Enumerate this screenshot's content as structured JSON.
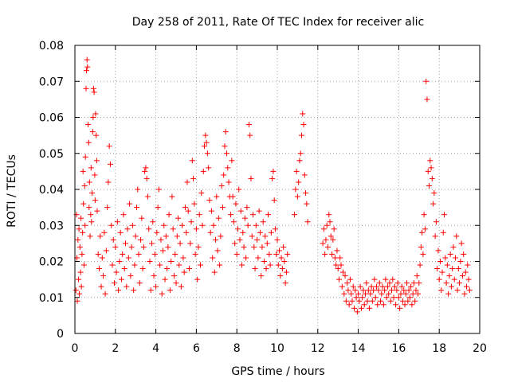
{
  "chart_data": {
    "type": "scatter",
    "title": "Day 258 of 2011, Rate Of TEC Index for receiver alic",
    "xlabel": "GPS time / hours",
    "ylabel": "ROTI / TECUs",
    "xlim": [
      0,
      20
    ],
    "ylim": [
      0,
      0.08
    ],
    "xticks": [
      "0",
      "2",
      "4",
      "6",
      "8",
      "10",
      "12",
      "14",
      "16",
      "18",
      "20"
    ],
    "yticks": [
      "0",
      "0.01",
      "0.02",
      "0.03",
      "0.04",
      "0.05",
      "0.06",
      "0.07",
      "0.08"
    ],
    "grid": true,
    "marker": "plus",
    "color": "#ff0000",
    "points": [
      [
        0.05,
        0.012
      ],
      [
        0.08,
        0.033
      ],
      [
        0.1,
        0.021
      ],
      [
        0.12,
        0.009
      ],
      [
        0.15,
        0.026
      ],
      [
        0.18,
        0.015
      ],
      [
        0.2,
        0.029
      ],
      [
        0.22,
        0.011
      ],
      [
        0.25,
        0.024
      ],
      [
        0.28,
        0.017
      ],
      [
        0.3,
        0.032
      ],
      [
        0.32,
        0.013
      ],
      [
        0.35,
        0.022
      ],
      [
        0.38,
        0.028
      ],
      [
        0.4,
        0.045
      ],
      [
        0.42,
        0.036
      ],
      [
        0.45,
        0.019
      ],
      [
        0.48,
        0.041
      ],
      [
        0.5,
        0.03
      ],
      [
        0.52,
        0.049
      ],
      [
        0.55,
        0.068
      ],
      [
        0.57,
        0.073
      ],
      [
        0.6,
        0.076
      ],
      [
        0.62,
        0.074
      ],
      [
        0.65,
        0.058
      ],
      [
        0.68,
        0.053
      ],
      [
        0.7,
        0.035
      ],
      [
        0.72,
        0.042
      ],
      [
        0.75,
        0.027
      ],
      [
        0.78,
        0.033
      ],
      [
        0.8,
        0.046
      ],
      [
        0.82,
        0.031
      ],
      [
        0.85,
        0.039
      ],
      [
        0.88,
        0.056
      ],
      [
        0.9,
        0.06
      ],
      [
        0.92,
        0.068
      ],
      [
        0.95,
        0.067
      ],
      [
        0.98,
        0.044
      ],
      [
        1.0,
        0.037
      ],
      [
        1.02,
        0.061
      ],
      [
        1.05,
        0.055
      ],
      [
        1.08,
        0.048
      ],
      [
        1.1,
        0.034
      ],
      [
        1.15,
        0.022
      ],
      [
        1.2,
        0.018
      ],
      [
        1.25,
        0.027
      ],
      [
        1.3,
        0.013
      ],
      [
        1.35,
        0.021
      ],
      [
        1.4,
        0.016
      ],
      [
        1.45,
        0.028
      ],
      [
        1.5,
        0.011
      ],
      [
        1.55,
        0.023
      ],
      [
        1.6,
        0.035
      ],
      [
        1.65,
        0.042
      ],
      [
        1.7,
        0.052
      ],
      [
        1.75,
        0.047
      ],
      [
        1.8,
        0.03
      ],
      [
        1.85,
        0.019
      ],
      [
        1.9,
        0.026
      ],
      [
        1.95,
        0.014
      ],
      [
        2.0,
        0.024
      ],
      [
        2.05,
        0.017
      ],
      [
        2.1,
        0.031
      ],
      [
        2.15,
        0.012
      ],
      [
        2.2,
        0.02
      ],
      [
        2.25,
        0.028
      ],
      [
        2.3,
        0.015
      ],
      [
        2.35,
        0.022
      ],
      [
        2.4,
        0.033
      ],
      [
        2.45,
        0.018
      ],
      [
        2.5,
        0.025
      ],
      [
        2.55,
        0.013
      ],
      [
        2.6,
        0.029
      ],
      [
        2.65,
        0.021
      ],
      [
        2.7,
        0.036
      ],
      [
        2.75,
        0.016
      ],
      [
        2.8,
        0.024
      ],
      [
        2.85,
        0.03
      ],
      [
        2.9,
        0.012
      ],
      [
        2.95,
        0.019
      ],
      [
        3.0,
        0.027
      ],
      [
        3.05,
        0.035
      ],
      [
        3.1,
        0.04
      ],
      [
        3.15,
        0.022
      ],
      [
        3.2,
        0.014
      ],
      [
        3.25,
        0.026
      ],
      [
        3.3,
        0.032
      ],
      [
        3.35,
        0.018
      ],
      [
        3.4,
        0.024
      ],
      [
        3.45,
        0.045
      ],
      [
        3.5,
        0.046
      ],
      [
        3.55,
        0.043
      ],
      [
        3.6,
        0.038
      ],
      [
        3.65,
        0.029
      ],
      [
        3.7,
        0.02
      ],
      [
        3.75,
        0.012
      ],
      [
        3.8,
        0.025
      ],
      [
        3.85,
        0.031
      ],
      [
        3.9,
        0.016
      ],
      [
        3.95,
        0.022
      ],
      [
        4.0,
        0.013
      ],
      [
        4.05,
        0.028
      ],
      [
        4.1,
        0.035
      ],
      [
        4.15,
        0.04
      ],
      [
        4.2,
        0.019
      ],
      [
        4.25,
        0.026
      ],
      [
        4.3,
        0.011
      ],
      [
        4.35,
        0.023
      ],
      [
        4.4,
        0.03
      ],
      [
        4.45,
        0.015
      ],
      [
        4.5,
        0.027
      ],
      [
        4.55,
        0.018
      ],
      [
        4.6,
        0.024
      ],
      [
        4.65,
        0.033
      ],
      [
        4.7,
        0.012
      ],
      [
        4.75,
        0.02
      ],
      [
        4.8,
        0.038
      ],
      [
        4.85,
        0.029
      ],
      [
        4.9,
        0.016
      ],
      [
        4.95,
        0.022
      ],
      [
        5.0,
        0.014
      ],
      [
        5.05,
        0.027
      ],
      [
        5.1,
        0.032
      ],
      [
        5.15,
        0.019
      ],
      [
        5.2,
        0.025
      ],
      [
        5.25,
        0.013
      ],
      [
        5.3,
        0.03
      ],
      [
        5.35,
        0.021
      ],
      [
        5.4,
        0.017
      ],
      [
        5.45,
        0.035
      ],
      [
        5.5,
        0.028
      ],
      [
        5.55,
        0.042
      ],
      [
        5.6,
        0.034
      ],
      [
        5.65,
        0.018
      ],
      [
        5.7,
        0.025
      ],
      [
        5.75,
        0.031
      ],
      [
        5.8,
        0.048
      ],
      [
        5.85,
        0.043
      ],
      [
        5.9,
        0.036
      ],
      [
        5.95,
        0.022
      ],
      [
        6.0,
        0.029
      ],
      [
        6.05,
        0.015
      ],
      [
        6.1,
        0.024
      ],
      [
        6.15,
        0.033
      ],
      [
        6.2,
        0.019
      ],
      [
        6.25,
        0.039
      ],
      [
        6.3,
        0.03
      ],
      [
        6.35,
        0.045
      ],
      [
        6.4,
        0.052
      ],
      [
        6.45,
        0.055
      ],
      [
        6.5,
        0.053
      ],
      [
        6.55,
        0.05
      ],
      [
        6.6,
        0.046
      ],
      [
        6.65,
        0.037
      ],
      [
        6.7,
        0.028
      ],
      [
        6.75,
        0.034
      ],
      [
        6.8,
        0.021
      ],
      [
        6.85,
        0.03
      ],
      [
        6.9,
        0.017
      ],
      [
        6.95,
        0.026
      ],
      [
        7.0,
        0.038
      ],
      [
        7.05,
        0.023
      ],
      [
        7.1,
        0.032
      ],
      [
        7.15,
        0.019
      ],
      [
        7.2,
        0.027
      ],
      [
        7.25,
        0.041
      ],
      [
        7.3,
        0.035
      ],
      [
        7.35,
        0.044
      ],
      [
        7.4,
        0.052
      ],
      [
        7.45,
        0.056
      ],
      [
        7.5,
        0.05
      ],
      [
        7.55,
        0.046
      ],
      [
        7.6,
        0.042
      ],
      [
        7.65,
        0.038
      ],
      [
        7.7,
        0.033
      ],
      [
        7.75,
        0.048
      ],
      [
        7.8,
        0.038
      ],
      [
        7.85,
        0.031
      ],
      [
        7.9,
        0.025
      ],
      [
        7.95,
        0.036
      ],
      [
        8.0,
        0.022
      ],
      [
        8.05,
        0.029
      ],
      [
        8.1,
        0.04
      ],
      [
        8.15,
        0.026
      ],
      [
        8.2,
        0.034
      ],
      [
        8.25,
        0.019
      ],
      [
        8.3,
        0.028
      ],
      [
        8.35,
        0.024
      ],
      [
        8.4,
        0.032
      ],
      [
        8.45,
        0.021
      ],
      [
        8.5,
        0.035
      ],
      [
        8.55,
        0.03
      ],
      [
        8.6,
        0.058
      ],
      [
        8.65,
        0.055
      ],
      [
        8.7,
        0.043
      ],
      [
        8.75,
        0.027
      ],
      [
        8.8,
        0.033
      ],
      [
        8.85,
        0.024
      ],
      [
        8.9,
        0.018
      ],
      [
        8.95,
        0.03
      ],
      [
        9.0,
        0.026
      ],
      [
        9.05,
        0.021
      ],
      [
        9.1,
        0.034
      ],
      [
        9.15,
        0.028
      ],
      [
        9.2,
        0.016
      ],
      [
        9.25,
        0.024
      ],
      [
        9.3,
        0.031
      ],
      [
        9.35,
        0.02
      ],
      [
        9.4,
        0.027
      ],
      [
        9.45,
        0.018
      ],
      [
        9.5,
        0.025
      ],
      [
        9.55,
        0.033
      ],
      [
        9.6,
        0.022
      ],
      [
        9.65,
        0.019
      ],
      [
        9.7,
        0.028
      ],
      [
        9.75,
        0.043
      ],
      [
        9.8,
        0.045
      ],
      [
        9.85,
        0.037
      ],
      [
        9.9,
        0.029
      ],
      [
        9.95,
        0.022
      ],
      [
        10.0,
        0.026
      ],
      [
        10.05,
        0.019
      ],
      [
        10.1,
        0.023
      ],
      [
        10.15,
        0.016
      ],
      [
        10.2,
        0.021
      ],
      [
        10.25,
        0.018
      ],
      [
        10.3,
        0.024
      ],
      [
        10.35,
        0.02
      ],
      [
        10.4,
        0.014
      ],
      [
        10.45,
        0.017
      ],
      [
        10.5,
        0.022
      ],
      [
        10.85,
        0.033
      ],
      [
        10.9,
        0.04
      ],
      [
        10.95,
        0.045
      ],
      [
        11.0,
        0.038
      ],
      [
        11.05,
        0.042
      ],
      [
        11.1,
        0.048
      ],
      [
        11.15,
        0.05
      ],
      [
        11.2,
        0.055
      ],
      [
        11.25,
        0.061
      ],
      [
        11.3,
        0.058
      ],
      [
        11.35,
        0.044
      ],
      [
        11.4,
        0.039
      ],
      [
        11.45,
        0.036
      ],
      [
        11.5,
        0.031
      ],
      [
        12.25,
        0.025
      ],
      [
        12.3,
        0.029
      ],
      [
        12.35,
        0.022
      ],
      [
        12.4,
        0.026
      ],
      [
        12.45,
        0.03
      ],
      [
        12.5,
        0.024
      ],
      [
        12.55,
        0.033
      ],
      [
        12.6,
        0.031
      ],
      [
        12.65,
        0.027
      ],
      [
        12.7,
        0.022
      ],
      [
        12.75,
        0.026
      ],
      [
        12.8,
        0.029
      ],
      [
        12.85,
        0.021
      ],
      [
        12.9,
        0.019
      ],
      [
        12.95,
        0.023
      ],
      [
        13.0,
        0.018
      ],
      [
        13.05,
        0.015
      ],
      [
        13.1,
        0.021
      ],
      [
        13.15,
        0.019
      ],
      [
        13.2,
        0.013
      ],
      [
        13.25,
        0.017
      ],
      [
        13.3,
        0.011
      ],
      [
        13.35,
        0.016
      ],
      [
        13.4,
        0.009
      ],
      [
        13.45,
        0.014
      ],
      [
        13.5,
        0.012
      ],
      [
        13.55,
        0.008
      ],
      [
        13.6,
        0.015
      ],
      [
        13.65,
        0.011
      ],
      [
        13.7,
        0.009
      ],
      [
        13.75,
        0.013
      ],
      [
        13.8,
        0.007
      ],
      [
        13.85,
        0.012
      ],
      [
        13.9,
        0.01
      ],
      [
        13.95,
        0.006
      ],
      [
        14.0,
        0.011
      ],
      [
        14.05,
        0.009
      ],
      [
        14.1,
        0.013
      ],
      [
        14.15,
        0.007
      ],
      [
        14.2,
        0.01
      ],
      [
        14.25,
        0.012
      ],
      [
        14.3,
        0.008
      ],
      [
        14.35,
        0.011
      ],
      [
        14.4,
        0.014
      ],
      [
        14.45,
        0.009
      ],
      [
        14.5,
        0.012
      ],
      [
        14.55,
        0.007
      ],
      [
        14.6,
        0.011
      ],
      [
        14.65,
        0.013
      ],
      [
        14.7,
        0.009
      ],
      [
        14.75,
        0.012
      ],
      [
        14.8,
        0.015
      ],
      [
        14.85,
        0.01
      ],
      [
        14.9,
        0.013
      ],
      [
        14.95,
        0.008
      ],
      [
        15.0,
        0.012
      ],
      [
        15.05,
        0.014
      ],
      [
        15.1,
        0.009
      ],
      [
        15.15,
        0.011
      ],
      [
        15.2,
        0.013
      ],
      [
        15.25,
        0.008
      ],
      [
        15.3,
        0.012
      ],
      [
        15.35,
        0.015
      ],
      [
        15.4,
        0.01
      ],
      [
        15.45,
        0.013
      ],
      [
        15.5,
        0.011
      ],
      [
        15.55,
        0.014
      ],
      [
        15.6,
        0.009
      ],
      [
        15.65,
        0.012
      ],
      [
        15.7,
        0.015
      ],
      [
        15.75,
        0.01
      ],
      [
        15.8,
        0.013
      ],
      [
        15.85,
        0.008
      ],
      [
        15.9,
        0.012
      ],
      [
        15.95,
        0.014
      ],
      [
        16.0,
        0.01
      ],
      [
        16.05,
        0.007
      ],
      [
        16.1,
        0.011
      ],
      [
        16.15,
        0.013
      ],
      [
        16.2,
        0.009
      ],
      [
        16.25,
        0.012
      ],
      [
        16.3,
        0.008
      ],
      [
        16.35,
        0.011
      ],
      [
        16.4,
        0.014
      ],
      [
        16.45,
        0.009
      ],
      [
        16.5,
        0.012
      ],
      [
        16.55,
        0.01
      ],
      [
        16.6,
        0.013
      ],
      [
        16.65,
        0.008
      ],
      [
        16.7,
        0.011
      ],
      [
        16.75,
        0.014
      ],
      [
        16.8,
        0.009
      ],
      [
        16.85,
        0.012
      ],
      [
        16.9,
        0.016
      ],
      [
        16.95,
        0.011
      ],
      [
        17.0,
        0.014
      ],
      [
        17.05,
        0.019
      ],
      [
        17.1,
        0.024
      ],
      [
        17.15,
        0.028
      ],
      [
        17.2,
        0.022
      ],
      [
        17.25,
        0.033
      ],
      [
        17.3,
        0.029
      ],
      [
        17.35,
        0.07
      ],
      [
        17.4,
        0.065
      ],
      [
        17.45,
        0.045
      ],
      [
        17.5,
        0.041
      ],
      [
        17.55,
        0.048
      ],
      [
        17.6,
        0.046
      ],
      [
        17.65,
        0.043
      ],
      [
        17.7,
        0.036
      ],
      [
        17.75,
        0.039
      ],
      [
        17.8,
        0.027
      ],
      [
        17.85,
        0.031
      ],
      [
        17.9,
        0.018
      ],
      [
        17.95,
        0.023
      ],
      [
        18.0,
        0.015
      ],
      [
        18.05,
        0.02
      ],
      [
        18.1,
        0.012
      ],
      [
        18.15,
        0.017
      ],
      [
        18.2,
        0.028
      ],
      [
        18.25,
        0.033
      ],
      [
        18.3,
        0.021
      ],
      [
        18.35,
        0.014
      ],
      [
        18.4,
        0.019
      ],
      [
        18.45,
        0.011
      ],
      [
        18.5,
        0.016
      ],
      [
        18.55,
        0.022
      ],
      [
        18.6,
        0.013
      ],
      [
        18.65,
        0.018
      ],
      [
        18.7,
        0.024
      ],
      [
        18.75,
        0.015
      ],
      [
        18.8,
        0.021
      ],
      [
        18.85,
        0.027
      ],
      [
        18.9,
        0.012
      ],
      [
        18.95,
        0.018
      ],
      [
        19.0,
        0.014
      ],
      [
        19.05,
        0.02
      ],
      [
        19.1,
        0.025
      ],
      [
        19.15,
        0.016
      ],
      [
        19.2,
        0.022
      ],
      [
        19.25,
        0.011
      ],
      [
        19.3,
        0.017
      ],
      [
        19.35,
        0.013
      ],
      [
        19.4,
        0.019
      ],
      [
        19.45,
        0.015
      ],
      [
        19.5,
        0.012
      ]
    ]
  }
}
